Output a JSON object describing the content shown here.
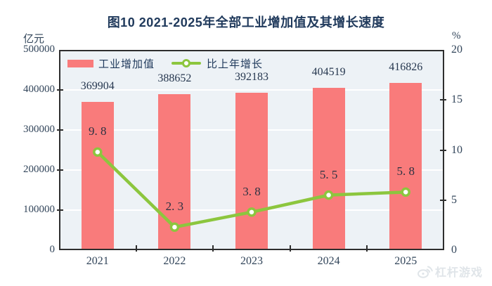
{
  "title": "图10  2021-2025年全部工业增加值及其增长速度",
  "left_axis_unit": "亿元",
  "right_axis_unit": "%",
  "legend": {
    "bar_label": "工业增加值",
    "line_label": "比上年增长"
  },
  "watermark": {
    "text": "杠杆游戏"
  },
  "colors": {
    "bar": "#f97b7b",
    "line": "#8cc63e",
    "marker_fill": "#ffffff",
    "plot_bg": "#edf2f6",
    "grid": "#ffffff",
    "axis": "#2e2e2e",
    "title_text": "#203a5c",
    "tick_text": "#32455a"
  },
  "chart_data": {
    "type": "combo",
    "categories": [
      "2021",
      "2022",
      "2023",
      "2024",
      "2025"
    ],
    "series": [
      {
        "name": "工业增加值",
        "type": "bar",
        "axis": "left",
        "values": [
          369904,
          388652,
          392183,
          404519,
          416826
        ],
        "labels": [
          "369904",
          "388652",
          "392183",
          "404519",
          "416826"
        ]
      },
      {
        "name": "比上年增长",
        "type": "line",
        "axis": "right",
        "values": [
          9.8,
          2.3,
          3.8,
          5.5,
          5.8
        ],
        "labels": [
          "9. 8",
          "2. 3",
          "3. 8",
          "5. 5",
          "5. 8"
        ]
      }
    ],
    "left_axis": {
      "min": 0,
      "max": 500000,
      "step": 100000,
      "ticks": [
        "500000",
        "400000",
        "300000",
        "200000",
        "100000",
        "0"
      ]
    },
    "right_axis": {
      "min": 0,
      "max": 20,
      "step": 5,
      "ticks": [
        "20",
        "15",
        "10",
        "5",
        "0"
      ]
    },
    "grid": true,
    "legend_position": "top-left-inside",
    "title": "图10  2021-2025年全部工业增加值及其增长速度",
    "xlabel": "",
    "ylabel_left": "亿元",
    "ylabel_right": "%"
  }
}
